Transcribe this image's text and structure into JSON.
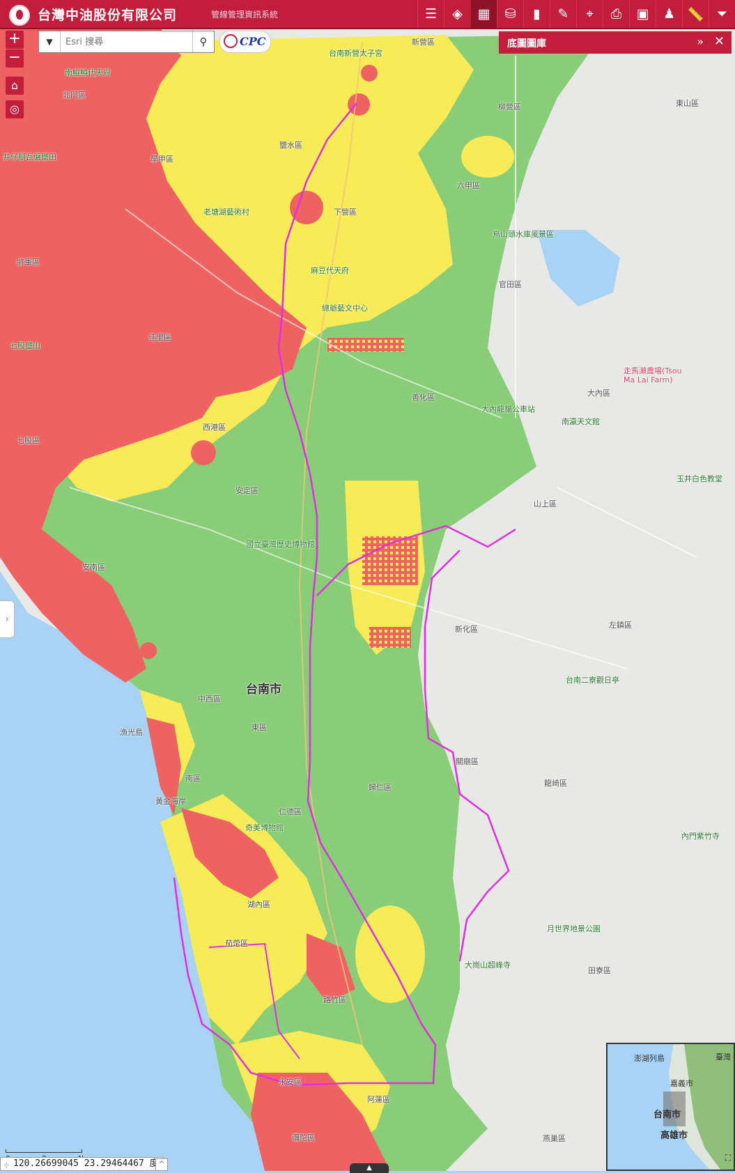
{
  "header": {
    "company": "台灣中油股份有限公司",
    "system": "管線管理資訊系統",
    "tools": [
      {
        "icon": "list-icon",
        "glyph": "☰"
      },
      {
        "icon": "layers-icon",
        "glyph": "◈"
      },
      {
        "icon": "basemap-grid-icon",
        "glyph": "▦"
      },
      {
        "icon": "map-pin-bag-icon",
        "glyph": "⛁"
      },
      {
        "icon": "book-icon",
        "glyph": "▮"
      },
      {
        "icon": "pen-icon",
        "glyph": "✎"
      },
      {
        "icon": "location-pin-icon",
        "glyph": "⌖"
      },
      {
        "icon": "print-icon",
        "glyph": "⎙"
      },
      {
        "icon": "screenshot-icon",
        "glyph": "▣"
      },
      {
        "icon": "person-icon",
        "glyph": "♟"
      },
      {
        "icon": "ruler-icon",
        "glyph": "📏"
      },
      {
        "icon": "filter-icon",
        "glyph": "⏷"
      }
    ]
  },
  "controls": {
    "zoom_in": "+",
    "zoom_out": "−",
    "home_glyph": "⌂",
    "locate_glyph": "◎"
  },
  "search": {
    "placeholder": "Esri 搜尋",
    "dropdown_glyph": "▼",
    "button_glyph": "⚲"
  },
  "logo_text": "CPC",
  "basemap_panel": {
    "title": "底圖圖庫",
    "collapse_glyph": "»",
    "close_glyph": "✕"
  },
  "side_tab_glyph": "›",
  "map_labels": [
    {
      "text": "台南新營太子宮",
      "type": "poi"
    },
    {
      "text": "新營區",
      "type": "town"
    },
    {
      "text": "南鯤鯓代天府",
      "type": "poi"
    },
    {
      "text": "北門區",
      "type": "town"
    },
    {
      "text": "井仔腳瓦盤鹽田",
      "type": "poi"
    },
    {
      "text": "學甲區",
      "type": "town"
    },
    {
      "text": "鹽水區",
      "type": "town"
    },
    {
      "text": "柳營區",
      "type": "town"
    },
    {
      "text": "東山區",
      "type": "town"
    },
    {
      "text": "六甲區",
      "type": "town"
    },
    {
      "text": "老塘湖藝術村",
      "type": "poi"
    },
    {
      "text": "下營區",
      "type": "town"
    },
    {
      "text": "烏山頭水庫風景區",
      "type": "poi"
    },
    {
      "text": "將軍區",
      "type": "town"
    },
    {
      "text": "麻豆代天府",
      "type": "poi"
    },
    {
      "text": "官田區",
      "type": "town"
    },
    {
      "text": "七股鹽山",
      "type": "poi"
    },
    {
      "text": "佳里區",
      "type": "town"
    },
    {
      "text": "總爺藝文中心",
      "type": "poi"
    },
    {
      "text": "走馬瀨農場(Tsou Ma Lai Farm)",
      "type": "farm"
    },
    {
      "text": "大內區",
      "type": "town"
    },
    {
      "text": "善化區",
      "type": "town"
    },
    {
      "text": "南瀛天文館",
      "type": "poi"
    },
    {
      "text": "七股區",
      "type": "town"
    },
    {
      "text": "西港區",
      "type": "town"
    },
    {
      "text": "大內龍貓公車站",
      "type": "poi"
    },
    {
      "text": "玉井白色教堂",
      "type": "poi"
    },
    {
      "text": "安定區",
      "type": "town"
    },
    {
      "text": "山上區",
      "type": "town"
    },
    {
      "text": "國立臺灣歷史博物館",
      "type": "poi"
    },
    {
      "text": "安南區",
      "type": "town"
    },
    {
      "text": "新化區",
      "type": "town"
    },
    {
      "text": "左鎮區",
      "type": "town"
    },
    {
      "text": "台南市",
      "type": "city"
    },
    {
      "text": "中西區",
      "type": "town"
    },
    {
      "text": "東區",
      "type": "town"
    },
    {
      "text": "台南二寮觀日亭",
      "type": "poi"
    },
    {
      "text": "漁光島",
      "type": "poi"
    },
    {
      "text": "黃金海岸",
      "type": "poi"
    },
    {
      "text": "南區",
      "type": "town"
    },
    {
      "text": "關廟區",
      "type": "town"
    },
    {
      "text": "龍崎區",
      "type": "town"
    },
    {
      "text": "歸仁區",
      "type": "town"
    },
    {
      "text": "仁德區",
      "type": "town"
    },
    {
      "text": "奇美博物館",
      "type": "poi"
    },
    {
      "text": "內門紫竹寺",
      "type": "poi"
    },
    {
      "text": "湖內區",
      "type": "town"
    },
    {
      "text": "月世界地景公園",
      "type": "poi"
    },
    {
      "text": "茄萣區",
      "type": "town"
    },
    {
      "text": "大崗山超峰寺",
      "type": "poi"
    },
    {
      "text": "田寮區",
      "type": "town"
    },
    {
      "text": "路竹區",
      "type": "town"
    },
    {
      "text": "永安區",
      "type": "town"
    },
    {
      "text": "阿蓮區",
      "type": "town"
    },
    {
      "text": "燕巢區",
      "type": "town"
    },
    {
      "text": "彌陀區",
      "type": "town"
    }
  ],
  "overview": {
    "labels": [
      {
        "text": "澎湖列島",
        "type": "small"
      },
      {
        "text": "臺灣",
        "type": "small"
      },
      {
        "text": "嘉義市",
        "type": "mid"
      },
      {
        "text": "台南市",
        "type": "big"
      },
      {
        "text": "高雄市",
        "type": "big"
      }
    ]
  },
  "scalebar": {
    "ticks": [
      "0",
      "2",
      "4km"
    ]
  },
  "coordinates": "120.26699045 23.29464467 度",
  "coords_glyph": "⊹",
  "attribution_glyph": "^",
  "bottom_tab_glyph": "▲",
  "fullscreen_glyph": "⛶"
}
